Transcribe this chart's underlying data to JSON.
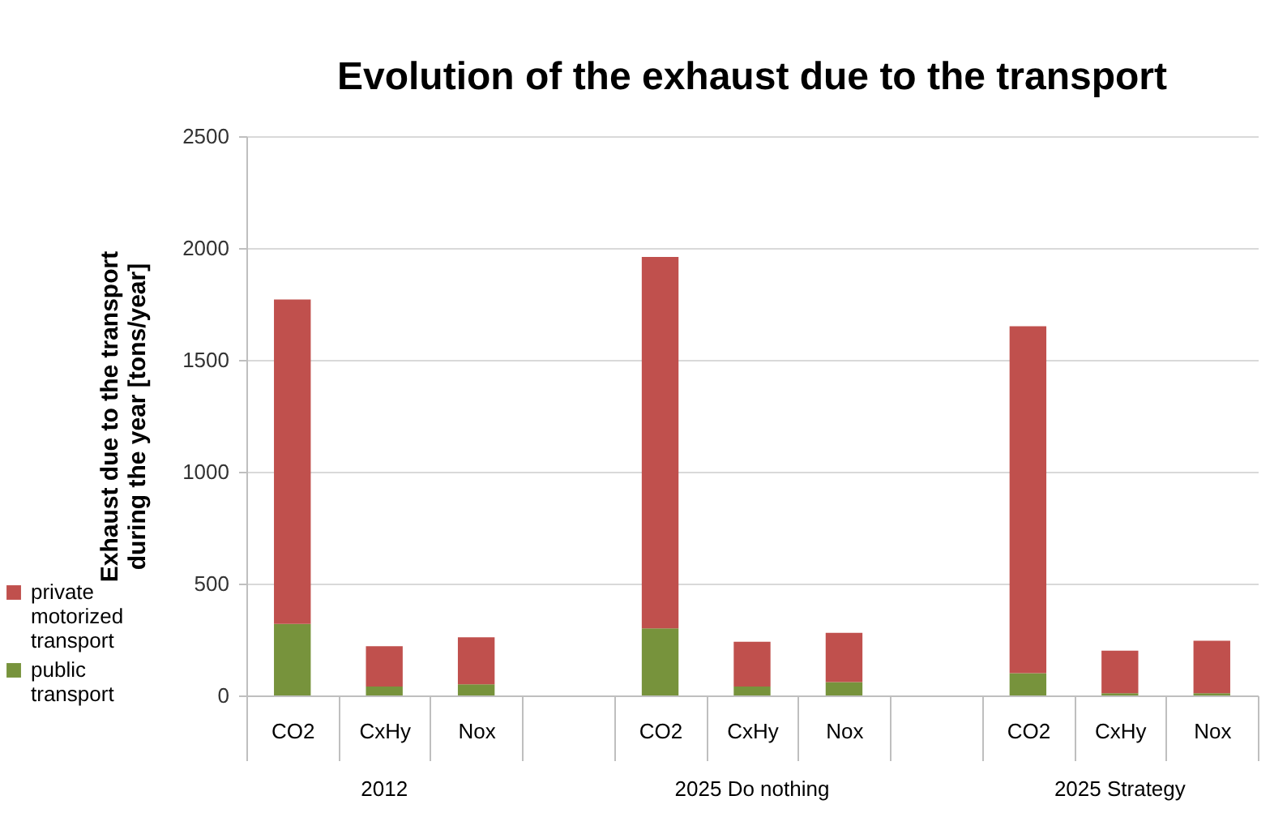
{
  "chart_data": {
    "type": "bar",
    "title": "Evolution of the exhaust due to the transport",
    "ylabel": "Exhaust due to the transport during the year [tons/year]",
    "categories": [
      "CO2",
      "CxHy",
      "Nox",
      null,
      "CO2",
      "CxHy",
      "Nox",
      null,
      "CO2",
      "CxHy",
      "Nox"
    ],
    "series": [
      {
        "name": "public transport",
        "color": "#77933c",
        "values": [
          320,
          40,
          50,
          null,
          300,
          40,
          60,
          null,
          100,
          10,
          10
        ]
      },
      {
        "name": "private motorized transport",
        "color": "#c0504d",
        "values": [
          1450,
          180,
          210,
          null,
          1660,
          200,
          220,
          null,
          1550,
          190,
          235
        ]
      }
    ],
    "stacked": true,
    "ylim": [
      0,
      2500
    ],
    "yticks": [
      0,
      500,
      1000,
      1500,
      2000,
      2500
    ],
    "grid": "y",
    "legend": "bottom left",
    "annotations": [
      "2012",
      "2025 Do nothing",
      "2025 Strategy"
    ]
  }
}
